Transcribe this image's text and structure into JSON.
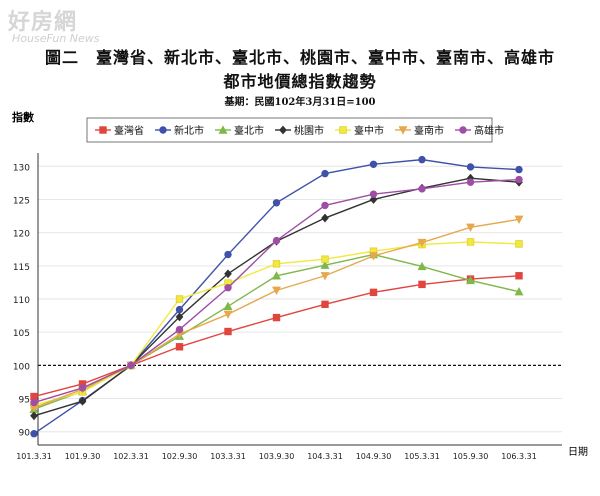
{
  "watermark": {
    "line1": "好房網",
    "line2": "HouseFun News"
  },
  "chart_data": {
    "type": "line",
    "title": "圖二　臺灣省、新北市、臺北市、桃園市、臺中市、臺南市、高雄市",
    "subtitle": "都市地價總指數趨勢",
    "note": "基期：民國102年3月31日=100",
    "ylabel": "指數",
    "xlabel": "日期",
    "ylim": [
      88,
      132
    ],
    "yticks": [
      90,
      95,
      100,
      105,
      110,
      115,
      120,
      125,
      130
    ],
    "reference_line": 100,
    "grid": true,
    "legend_position": "top",
    "x": [
      "101.3.31",
      "101.9.30",
      "102.3.31",
      "102.9.30",
      "103.3.31",
      "103.9.30",
      "104.3.31",
      "104.9.30",
      "105.3.31",
      "105.9.30",
      "106.3.31"
    ],
    "series": [
      {
        "name": "臺灣省",
        "color": "#e0453f",
        "marker": "square",
        "values": [
          95.3,
          97.2,
          100,
          102.8,
          105.1,
          107.2,
          109.2,
          111.0,
          112.2,
          113.0,
          113.5
        ]
      },
      {
        "name": "新北市",
        "color": "#3f51a8",
        "marker": "circle",
        "values": [
          89.7,
          94.7,
          100,
          108.4,
          116.7,
          124.5,
          128.9,
          130.3,
          131.0,
          129.9,
          129.5
        ]
      },
      {
        "name": "臺北市",
        "color": "#7fb84a",
        "marker": "triangle",
        "values": [
          93.4,
          96.1,
          100,
          104.4,
          108.9,
          113.5,
          115.1,
          116.7,
          114.9,
          112.8,
          111.1
        ]
      },
      {
        "name": "桃園市",
        "color": "#333333",
        "marker": "diamond",
        "values": [
          92.4,
          94.6,
          100,
          107.3,
          113.8,
          118.7,
          122.2,
          125.0,
          126.7,
          128.2,
          127.6
        ]
      },
      {
        "name": "臺中市",
        "color": "#f3e83e",
        "marker": "square",
        "values": [
          94.0,
          96.0,
          100,
          110.0,
          112.4,
          115.3,
          116.0,
          117.2,
          118.2,
          118.6,
          118.3
        ]
      },
      {
        "name": "臺南市",
        "color": "#e5a84e",
        "marker": "triangle-down",
        "values": [
          93.6,
          96.4,
          100,
          104.7,
          107.7,
          111.3,
          113.5,
          116.5,
          118.5,
          120.8,
          122.0
        ]
      },
      {
        "name": "高雄市",
        "color": "#9e4fa5",
        "marker": "circle",
        "values": [
          94.4,
          96.6,
          100,
          105.4,
          111.7,
          118.8,
          124.1,
          125.8,
          126.6,
          127.6,
          128.0
        ]
      }
    ]
  }
}
